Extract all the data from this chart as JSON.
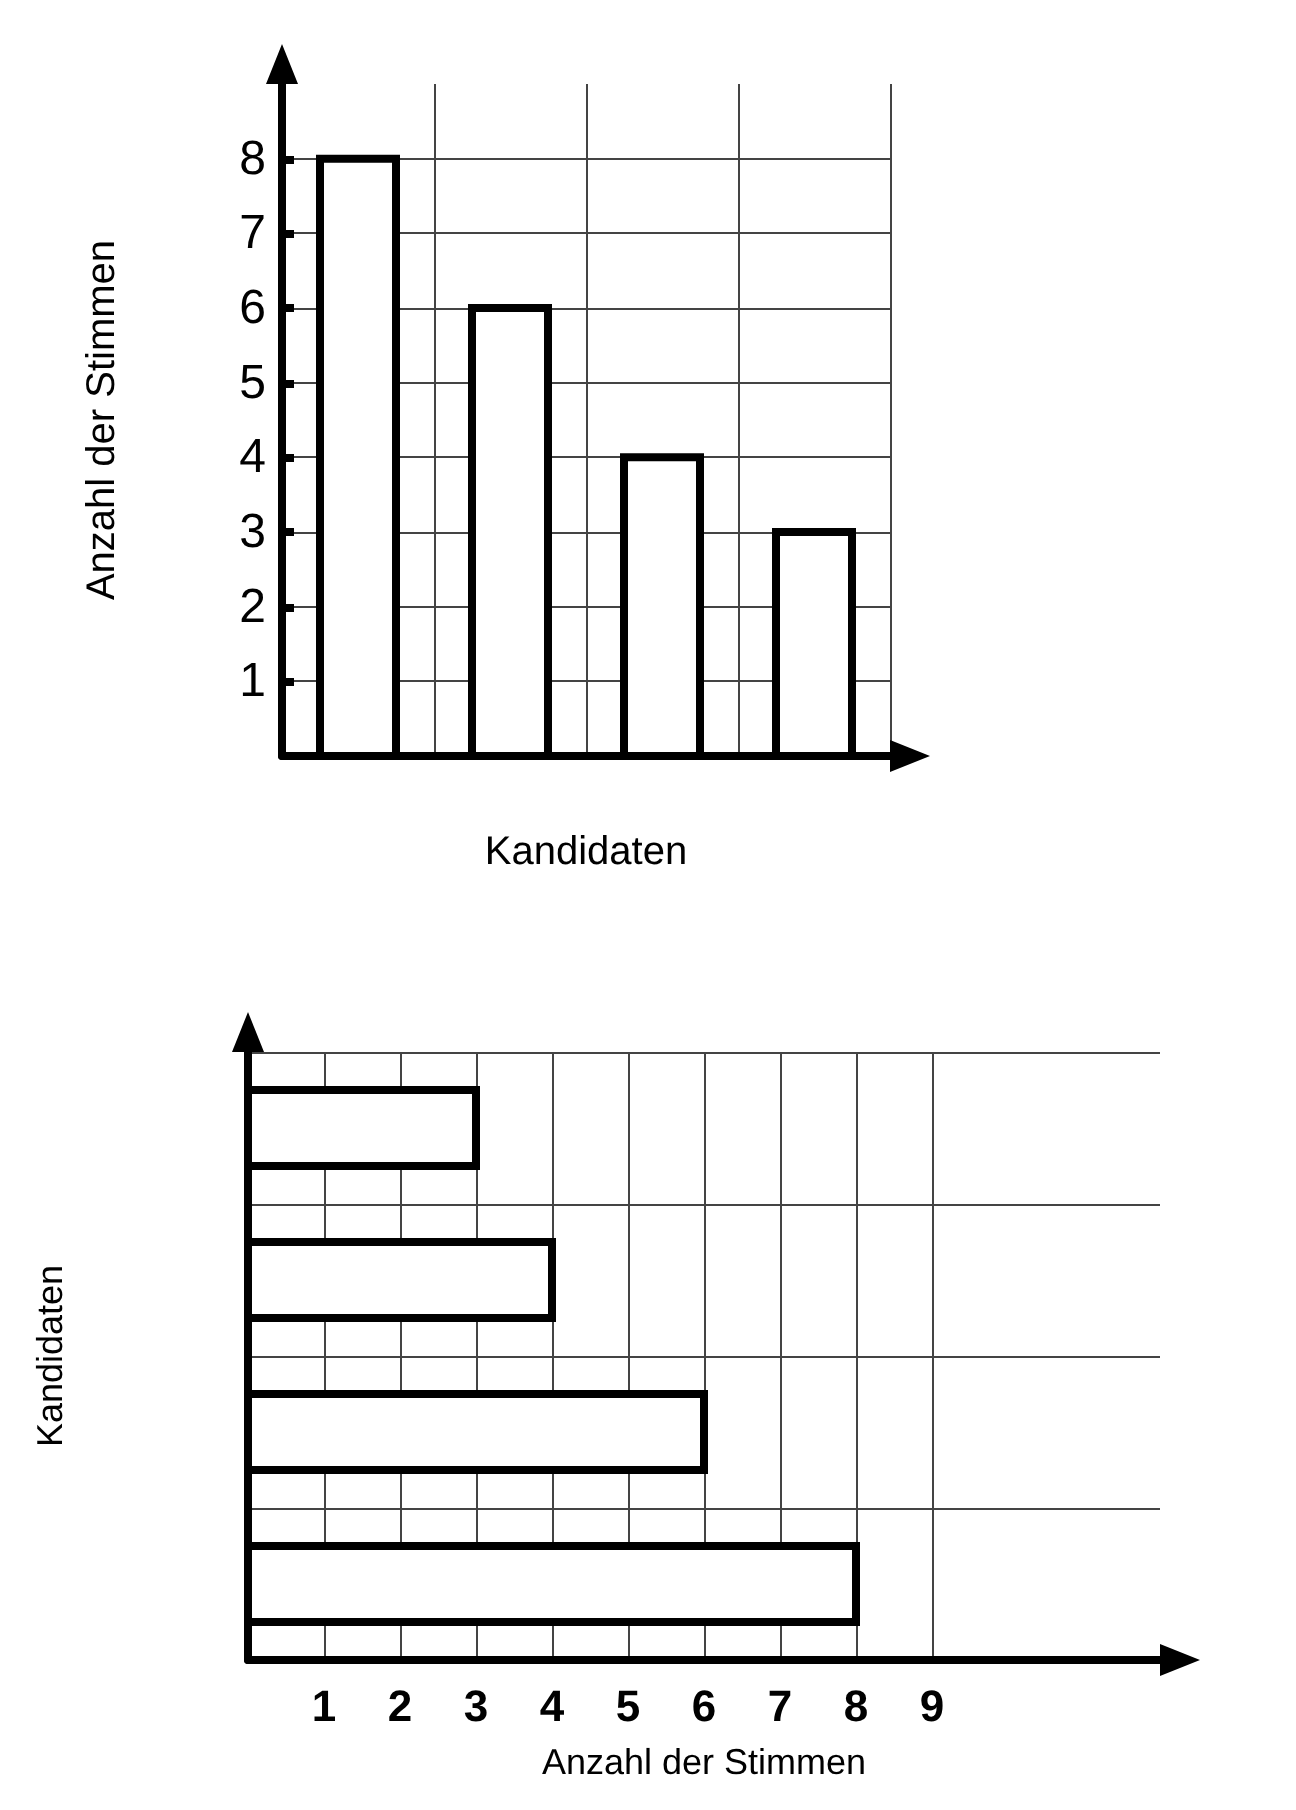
{
  "chart_data": [
    {
      "type": "bar",
      "xlabel": "Kandidaten",
      "ylabel": "Anzahl der Stimmen",
      "categories": [
        null,
        null,
        null,
        null
      ],
      "values": [
        8,
        6,
        4,
        3
      ],
      "color": "#000000",
      "ylim": [
        0,
        9
      ],
      "yticks": [
        1,
        2,
        3,
        4,
        5,
        6,
        7,
        8
      ],
      "grid": true
    },
    {
      "type": "bar",
      "orientation": "horizontal",
      "xlabel": "Anzahl der Stimmen",
      "ylabel": "Kandidaten",
      "categories": [
        null,
        null,
        null,
        null
      ],
      "values": [
        3,
        4,
        6,
        8
      ],
      "color": "#000000",
      "xlim": [
        0,
        12
      ],
      "xticks": [
        1,
        2,
        3,
        4,
        5,
        6,
        7,
        8,
        9
      ],
      "grid": true
    }
  ]
}
